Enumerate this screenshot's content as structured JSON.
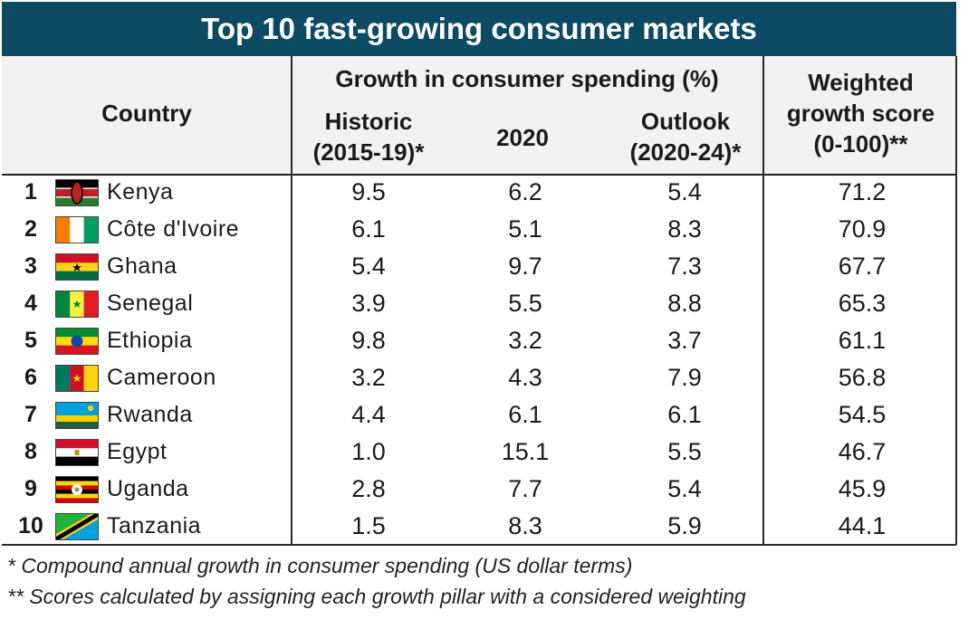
{
  "chart_data": {
    "type": "table",
    "title": "Top 10 fast-growing consumer markets",
    "columns": {
      "country": "Country",
      "group": "Growth in consumer spending (%)",
      "historic": [
        "Historic",
        "(2015-19)*"
      ],
      "y2020": "2020",
      "outlook": [
        "Outlook",
        "(2020-24)*"
      ],
      "score": [
        "Weighted",
        "growth score",
        "(0-100)**"
      ]
    },
    "rows": [
      {
        "rank": "1",
        "country": "Kenya",
        "flag": "kenya-flag",
        "historic": "9.5",
        "y2020": "6.2",
        "outlook": "5.4",
        "score": "71.2"
      },
      {
        "rank": "2",
        "country": "Côte d'Ivoire",
        "flag": "cote-divoire-flag",
        "historic": "6.1",
        "y2020": "5.1",
        "outlook": "8.3",
        "score": "70.9"
      },
      {
        "rank": "3",
        "country": "Ghana",
        "flag": "ghana-flag",
        "historic": "5.4",
        "y2020": "9.7",
        "outlook": "7.3",
        "score": "67.7"
      },
      {
        "rank": "4",
        "country": "Senegal",
        "flag": "senegal-flag",
        "historic": "3.9",
        "y2020": "5.5",
        "outlook": "8.8",
        "score": "65.3"
      },
      {
        "rank": "5",
        "country": "Ethiopia",
        "flag": "ethiopia-flag",
        "historic": "9.8",
        "y2020": "3.2",
        "outlook": "3.7",
        "score": "61.1"
      },
      {
        "rank": "6",
        "country": "Cameroon",
        "flag": "cameroon-flag",
        "historic": "3.2",
        "y2020": "4.3",
        "outlook": "7.9",
        "score": "56.8"
      },
      {
        "rank": "7",
        "country": "Rwanda",
        "flag": "rwanda-flag",
        "historic": "4.4",
        "y2020": "6.1",
        "outlook": "6.1",
        "score": "54.5"
      },
      {
        "rank": "8",
        "country": "Egypt",
        "flag": "egypt-flag",
        "historic": "1.0",
        "y2020": "15.1",
        "outlook": "5.5",
        "score": "46.7"
      },
      {
        "rank": "9",
        "country": "Uganda",
        "flag": "uganda-flag",
        "historic": "2.8",
        "y2020": "7.7",
        "outlook": "5.4",
        "score": "45.9"
      },
      {
        "rank": "10",
        "country": "Tanzania",
        "flag": "tanzania-flag",
        "historic": "1.5",
        "y2020": "8.3",
        "outlook": "5.9",
        "score": "44.1"
      }
    ],
    "footnotes": [
      "* Compound annual growth in consumer spending (US dollar terms)",
      "** Scores calculated by assigning each growth pillar with a considered weighting"
    ]
  },
  "colors": {
    "title_background": "#0c4a63",
    "title_text": "#ffffff",
    "header_background": "#f2f2f2"
  }
}
